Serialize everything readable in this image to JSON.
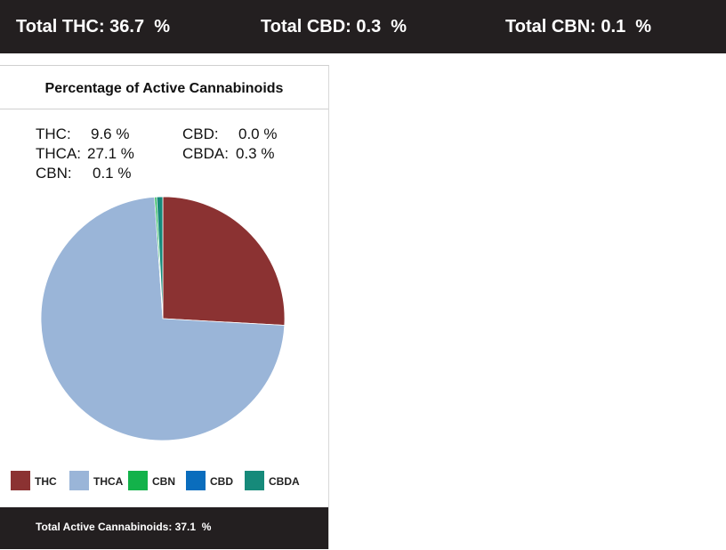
{
  "header": {
    "totals": [
      {
        "label": "Total THC: 36.7  %"
      },
      {
        "label": "Total CBD: 0.3  %"
      },
      {
        "label": "Total CBN: 0.1  %"
      }
    ]
  },
  "card": {
    "title": "Percentage of Active Cannabinoids",
    "left_values": [
      {
        "name": "THC:",
        "value": "9.6 %"
      },
      {
        "name": "THCA:",
        "value": "27.1 %"
      },
      {
        "name": "CBN:",
        "value": "0.1 %"
      }
    ],
    "right_values": [
      {
        "name": "CBD:",
        "value": "0.0 %"
      },
      {
        "name": "CBDA:",
        "value": "0.3 %"
      }
    ],
    "footer": "Total Active Cannabinoids: 37.1  %"
  },
  "chart_data": {
    "type": "pie",
    "title": "Percentage of Active Cannabinoids",
    "categories": [
      "THC",
      "THCA",
      "CBN",
      "CBD",
      "CBDA"
    ],
    "values": [
      9.6,
      27.1,
      0.1,
      0.0,
      0.3
    ],
    "colors": [
      "#8b3232",
      "#9ab5d8",
      "#13b24a",
      "#0a6dbd",
      "#168a7a"
    ],
    "start_angle_deg": 0,
    "direction": "clockwise-from-top",
    "legend": "bottom",
    "slice_labels": false
  }
}
